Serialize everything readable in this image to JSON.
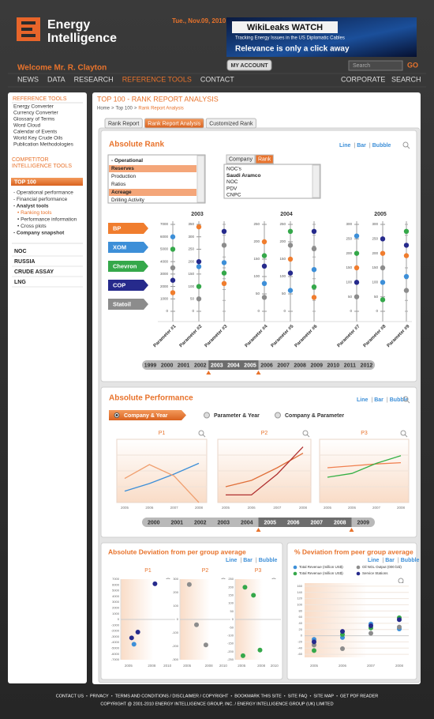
{
  "header": {
    "brand": [
      "Energy",
      "Intelligence"
    ],
    "date": "Tue., Nov.09, 2010",
    "ad": {
      "title": "WikiLeaks WATCH",
      "subtitle": "Tracking Energy Issues in the US Diplomatic Cables",
      "tagline": "Relevance is only a click away"
    },
    "welcome": "Welcome Mr. R. Clayton",
    "account_button": "MY ACCOUNT",
    "search_placeholder": "Search",
    "search_button": "GO"
  },
  "nav": {
    "items": [
      "NEWS",
      "DATA",
      "RESEARCH",
      "REFERENCE TOOLS",
      "CONTACT"
    ],
    "active": 3,
    "right_items": [
      "CORPORATE",
      "SEARCH"
    ]
  },
  "sidebar": {
    "reference_title": "REFERENCE TOOLS",
    "reference_items": [
      "Energy Converter",
      "Currency Converter",
      "Glossary of Terms",
      "Word Cloud",
      "Calendar of Events",
      "World Key Crude Oils",
      "Publication Methodologies"
    ],
    "competitor_title": "COMPETITOR INTELLIGENCE TOOLS",
    "top100": "TOP 100",
    "top100_items": [
      "- Operational performance",
      "- Financial performance",
      "- Analyst tools",
      "• Ranking tools",
      "• Performance information",
      "• Cross plots",
      "- Company snapshot"
    ],
    "bold_items": [
      2,
      6
    ],
    "indented_items": [
      3,
      4,
      5
    ],
    "active_item": 3,
    "sections": [
      "NOC",
      "RUSSIA",
      "CRUDE ASSAY",
      "LNG"
    ]
  },
  "content": {
    "title": "TOP 100 - RANK REPORT ANALYSIS",
    "breadcrumb": [
      "Home",
      "Top 100",
      "Rank Report Analysis"
    ],
    "breadcrumb_separator": ">",
    "tabs": [
      "Rank Report",
      "Rank Report Analysis",
      "Customized Rank"
    ],
    "active_tab": 1
  },
  "view_options": {
    "items": [
      "Line",
      "Bar",
      "Bubble"
    ],
    "separator": "|"
  },
  "absolute_rank": {
    "title": "Absolute Rank",
    "metrics": [
      "- Operational",
      "Reserves",
      "Production",
      "Ratios",
      "Acreage",
      "Drilling Activity"
    ],
    "selected_metrics": [
      1,
      4
    ],
    "toggle": [
      "Company",
      "Rank"
    ],
    "active_toggle": 1,
    "company_list": [
      "NOC's",
      "Saudi Aramco",
      "NOC",
      "PDV",
      "CNPC"
    ],
    "bold_company": 1,
    "companies": [
      {
        "name": "BP",
        "color": "#f07d2e"
      },
      {
        "name": "XOM",
        "color": "#3d8fd8"
      },
      {
        "name": "Chevron",
        "color": "#35a84a"
      },
      {
        "name": "COP",
        "color": "#262a8c"
      },
      {
        "name": "Statoil",
        "color": "#8c8c8c"
      }
    ],
    "groups": [
      {
        "year": "2003",
        "params": [
          {
            "name": "Parameter #1",
            "ylim": [
              0,
              7000
            ],
            "yticks": [
              0,
              1000,
              2000,
              3000,
              4000,
              5000,
              6000,
              7000
            ],
            "values": [
              1500,
              6000,
              5000,
              2500,
              3500
            ]
          },
          {
            "name": "Parameter #2",
            "ylim": [
              0,
              350
            ],
            "yticks": [
              0,
              50,
              100,
              150,
              200,
              250,
              300,
              350
            ],
            "values": [
              340,
              180,
              100,
              200,
              50
            ]
          },
          {
            "name": "Parameter #3",
            "ylim": [
              0,
              250
            ],
            "values": [
              80,
              140,
              110,
              230,
              190
            ]
          }
        ]
      },
      {
        "year": "2004",
        "params": [
          {
            "name": "Parameter #4",
            "ylim": [
              0,
              250
            ],
            "yticks": [
              0,
              50,
              100,
              150,
              200,
              250
            ],
            "values": [
              200,
              80,
              160,
              130,
              40
            ]
          },
          {
            "name": "Parameter #5",
            "ylim": [
              0,
              250
            ],
            "yticks": [
              0,
              50,
              100,
              150,
              200,
              250
            ],
            "values": [
              150,
              60,
              230,
              110,
              190
            ]
          },
          {
            "name": "Parameter #6",
            "ylim": [
              0,
              250
            ],
            "values": [
              40,
              120,
              70,
              230,
              180
            ]
          }
        ]
      },
      {
        "year": "2005",
        "params": [
          {
            "name": "Parameter #7",
            "ylim": [
              0,
              300
            ],
            "yticks": [
              0,
              50,
              100,
              150,
              200,
              250,
              300
            ],
            "values": [
              150,
              260,
              200,
              100,
              50
            ]
          },
          {
            "name": "Parameter #8",
            "ylim": [
              0,
              300
            ],
            "yticks": [
              0,
              50,
              100,
              150,
              200,
              250,
              300
            ],
            "values": [
              200,
              100,
              40,
              250,
              150
            ]
          },
          {
            "name": "Parameter #9",
            "ylim": [
              0,
              250
            ],
            "values": [
              160,
              100,
              230,
              190,
              60
            ]
          }
        ]
      }
    ],
    "slider": {
      "years": [
        "1999",
        "2000",
        "2001",
        "2002",
        "2003",
        "2004",
        "2005",
        "2006",
        "2007",
        "2008",
        "2009",
        "2010",
        "2011",
        "2012"
      ],
      "selected": [
        4,
        6
      ]
    }
  },
  "absolute_performance": {
    "title": "Absolute Performance",
    "options": [
      "Company & Year",
      "Parameter & Year",
      "Company & Parameter"
    ],
    "active_option": 0,
    "charts": [
      {
        "title": "P1",
        "ylim": [
          0,
          100
        ],
        "categories": [
          "2005",
          "2006",
          "2007",
          "2008"
        ],
        "series": [
          {
            "color": "#3d8fd8",
            "values": [
              18,
              30,
              45,
              62
            ]
          },
          {
            "color": "#f0a070",
            "values": [
              38,
              60,
              42,
              0
            ]
          }
        ]
      },
      {
        "title": "P2",
        "ylim": [
          0,
          100
        ],
        "categories": [
          "2005",
          "2006",
          "2007",
          "2008"
        ],
        "series": [
          {
            "color": "#e0703a",
            "values": [
              25,
              35,
              55,
              78
            ]
          },
          {
            "color": "#b03030",
            "values": [
              12,
              12,
              45,
              88
            ]
          }
        ]
      },
      {
        "title": "P3",
        "ylim": [
          0,
          100
        ],
        "categories": [
          "2005",
          "2006",
          "2007",
          "2008"
        ],
        "series": [
          {
            "color": "#f08050",
            "values": [
              55,
              58,
              61,
              63
            ]
          },
          {
            "color": "#35b045",
            "values": [
              40,
              46,
              62,
              74
            ]
          }
        ]
      }
    ],
    "slider": {
      "years": [
        "2000",
        "2001",
        "2002",
        "2003",
        "2004",
        "2005",
        "2006",
        "2007",
        "2008",
        "2009"
      ],
      "selected": [
        5,
        8
      ]
    }
  },
  "absolute_deviation": {
    "title": "Absolute Deviation from per group average",
    "charts": [
      {
        "title": "P1",
        "ylim": [
          -7000,
          7000
        ],
        "yticks": [
          -7000,
          -6000,
          -5000,
          -4000,
          -3000,
          -2000,
          -1000,
          0,
          1000,
          2000,
          3000,
          4000,
          5000,
          6000,
          7000
        ],
        "xlim": [
          2004,
          2011
        ],
        "xticks": [
          2005,
          2008,
          2010
        ],
        "series": [
          {
            "color": "#262a8c",
            "x": [
              2005.4,
              2006.2,
              2008.4
            ],
            "values": [
              -3200,
              -2200,
              6200
            ]
          },
          {
            "color": "#3d8fd8",
            "x": [
              2005.7
            ],
            "values": [
              -4300
            ]
          }
        ]
      },
      {
        "title": "P2",
        "ylim": [
          -300,
          300
        ],
        "yticks": [
          -300,
          -200,
          -100,
          0,
          100,
          200,
          300
        ],
        "xlim": [
          2004,
          2011
        ],
        "xticks": [
          2005,
          2008,
          2010
        ],
        "series": [
          {
            "color": "#8c8c8c",
            "x": [
              2005.3,
              2006.3,
              2007.6
            ],
            "values": [
              260,
              -40,
              -190
            ]
          }
        ]
      },
      {
        "title": "P3",
        "ylim": [
          -250,
          250
        ],
        "yticks": [
          -250,
          -200,
          -150,
          -100,
          -50,
          0,
          50,
          100,
          150,
          200,
          250
        ],
        "xlim": [
          2004,
          2011
        ],
        "xticks": [
          2005,
          2008,
          2010
        ],
        "series": [
          {
            "color": "#35a84a",
            "x": [
              2005.5,
              2006.8,
              2007.8,
              2005.2
            ],
            "values": [
              200,
              150,
              -190,
              -225
            ]
          }
        ]
      }
    ]
  },
  "pct_deviation": {
    "title": "% Deviation from peer group average",
    "ylim": [
      -70,
      170
    ],
    "yticks": [
      -60,
      -40,
      -20,
      0,
      20,
      40,
      60,
      80,
      100,
      120,
      140,
      160
    ],
    "categories": [
      "2005",
      "2006",
      "2007",
      "2008"
    ],
    "series": [
      {
        "name": "Total Revenue (million US$)",
        "color": "#3d8fd8",
        "values": [
          -12,
          -6,
          38,
          22
        ]
      },
      {
        "name": "Oil NGL Output (000 b/d)",
        "color": "#8c8c8c",
        "values": [
          -30,
          -42,
          8,
          28
        ]
      },
      {
        "name": "Total Revenue (million US$)",
        "color": "#35a84a",
        "values": [
          -48,
          4,
          25,
          58
        ]
      },
      {
        "name": "Service Stations",
        "color": "#262a8c",
        "values": [
          -20,
          14,
          32,
          52
        ]
      }
    ]
  },
  "footer": {
    "links": [
      "CONTACT US",
      "PRIVACY",
      "TERMS AND CONDITIONS / DISCLAIMER / COPYRIGHT",
      "BOOKMARK THIS SITE",
      "SITE FAQ",
      "SITE MAP",
      "GET PDF READER"
    ],
    "separator": "•",
    "copyright": "COPYRIGHT @ 2001-2010 ENERGY INTELLIGENCE GROUP, INC. / ENERGY INTELLIGENCE GROUP (UK) LIMITED"
  }
}
